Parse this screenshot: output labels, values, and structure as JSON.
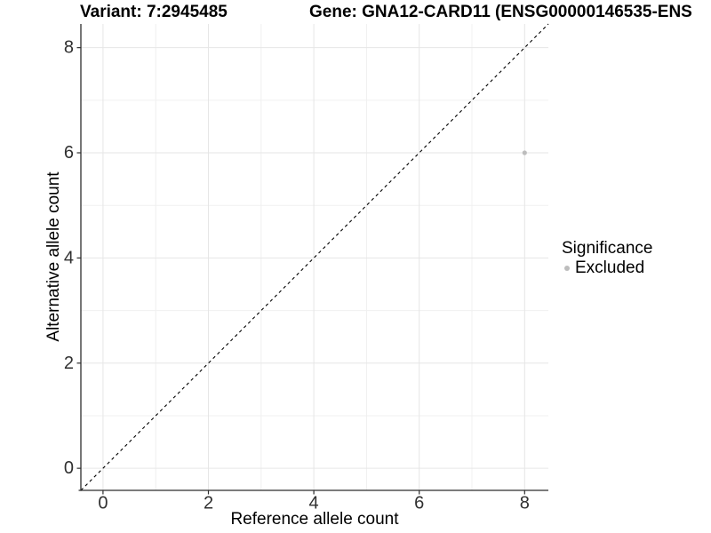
{
  "header": {
    "variant_title": "Variant: 7:2945485",
    "gene_title": "Gene: GNA12-CARD11 (ENSG00000146535-ENS"
  },
  "legend": {
    "title": "Significance",
    "items": [
      {
        "label": "Excluded",
        "color": "#bdbdbd"
      }
    ]
  },
  "chart_data": {
    "type": "scatter",
    "title_left": "Variant: 7:2945485",
    "title_right": "Gene: GNA12-CARD11 (ENSG00000146535-ENS",
    "xlabel": "Reference allele count",
    "ylabel": "Alternative allele count",
    "xlim": [
      -0.42,
      8.45
    ],
    "ylim": [
      -0.42,
      8.45
    ],
    "x_ticks": [
      0,
      2,
      4,
      6,
      8
    ],
    "y_ticks": [
      0,
      2,
      4,
      6,
      8
    ],
    "x_minor_ticks": [
      1,
      3,
      5,
      7
    ],
    "y_minor_ticks": [
      1,
      3,
      5,
      7
    ],
    "grid": true,
    "legend_position": "right",
    "points": [
      {
        "x": 8,
        "y": 6,
        "series": "Excluded"
      }
    ],
    "reference_line": {
      "type": "identity",
      "slope": 1,
      "intercept": 0,
      "style": "dashed"
    },
    "colors": {
      "excluded_point": "#bdbdbd",
      "grid_major": "#e6e6e6",
      "grid_minor": "#f0f0f0",
      "axis": "#2e2e2e",
      "tick_label": "#303030",
      "dashed_line": "#000000"
    }
  }
}
